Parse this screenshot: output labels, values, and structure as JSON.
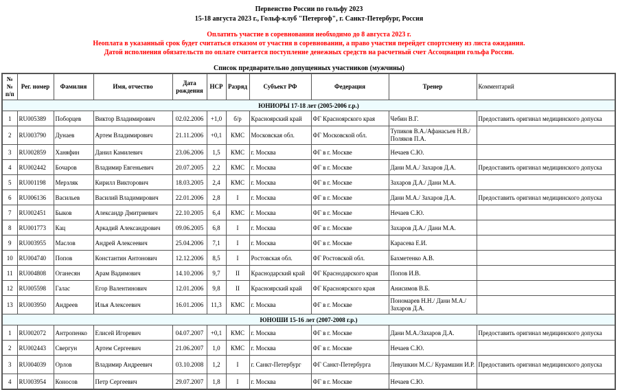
{
  "header": {
    "title": "Первенство России по гольфу 2023",
    "subtitle": "15-18 августа 2023 г., Гольф-клуб \"Петергоф\", г. Санкт-Петербург, Россия"
  },
  "notice": {
    "line1": "Оплатить участие в соревновании необходимо до 8 августа 2023 г.",
    "line2": "Неоплата в указанный срок будет считаться отказом от участия в соревновании, а право участия перейдет спортсмену из листа ожидания.",
    "line3": "Датой исполнения обязательств по оплате считается поступление денежных средств на расчетный счет Ассоциации гольфа России.",
    "color": "#ff0000"
  },
  "list_title": "Список предварительно допущенных участников (мужчины)",
  "columns": [
    "№ № п/п",
    "Рег. номер",
    "Фамилия",
    "Имя, отчество",
    "Дата рождения",
    "НСР",
    "Разряд",
    "Субъект РФ",
    "Федерация",
    "Тренер",
    "Комментарий"
  ],
  "sections": [
    {
      "title": "ЮНИОРЫ 17-18 лет (2005-2006 г.р.)",
      "rows": [
        [
          "1",
          "RU005389",
          "Поборцев",
          "Виктор Владимирович",
          "02.02.2006",
          "+1,0",
          "б/р",
          "Красноярский край",
          "ФГ Красноярского края",
          "Чебин В.Г.",
          "Предоставить оригинал медицинского допуска"
        ],
        [
          "2",
          "RU003790",
          "Дунаев",
          "Артем Владимирович",
          "21.11.2006",
          "+0,1",
          "КМС",
          "Московская обл.",
          "ФГ Московской обл.",
          "Тупиков В.А./Афанасьев Н.В./ Поляков П.А.",
          ""
        ],
        [
          "3",
          "RU002859",
          "Ханяфин",
          "Данил Камилевич",
          "23.06.2006",
          "1,5",
          "КМС",
          "г. Москва",
          "ФГ в г. Москве",
          "Нечаев С.Ю.",
          ""
        ],
        [
          "4",
          "RU002442",
          "Бочаров",
          "Владимир Евгеньевич",
          "20.07.2005",
          "2,2",
          "КМС",
          "г. Москва",
          "ФГ в г. Москве",
          "Дани М.А./ Захаров Д.А.",
          "Предоставить оригинал медицинского допуска"
        ],
        [
          "5",
          "RU001198",
          "Мерзляк",
          "Кирилл Викторович",
          "18.03.2005",
          "2,4",
          "КМС",
          "г. Москва",
          "ФГ в г. Москве",
          "Захаров Д.А./ Дани М.А.",
          ""
        ],
        [
          "6",
          "RU006136",
          "Васильев",
          "Василий Владимирович",
          "22.01.2006",
          "2,8",
          "I",
          "г. Москва",
          "ФГ в г. Москве",
          "Дани М.А./ Захаров Д.А.",
          "Предоставить оригинал медицинского допуска"
        ],
        [
          "7",
          "RU002451",
          "Быков",
          "Александр Дмитриевич",
          "22.10.2005",
          "6,4",
          "КМС",
          "г. Москва",
          "ФГ в г. Москве",
          "Нечаев С.Ю.",
          ""
        ],
        [
          "8",
          "RU001773",
          "Кац",
          "Аркадий Александрович",
          "09.06.2005",
          "6,8",
          "I",
          "г. Москва",
          "ФГ в г. Москве",
          "Захаров Д.А./ Дани М.А.",
          ""
        ],
        [
          "9",
          "RU003955",
          "Маслов",
          "Андрей Алексеевич",
          "25.04.2006",
          "7,1",
          "I",
          "г. Москва",
          "ФГ в г. Москве",
          "Карасева Е.И.",
          ""
        ],
        [
          "10",
          "RU004740",
          "Попов",
          "Константин Антонович",
          "12.12.2006",
          "8,5",
          "I",
          "Ростовская обл.",
          "ФГ Ростовской обл.",
          "Бахметенко А.В.",
          ""
        ],
        [
          "11",
          "RU004808",
          "Оганесян",
          "Арам Вадимович",
          "14.10.2006",
          "9,7",
          "II",
          "Краснодарский край",
          "ФГ Краснодарского края",
          "Попов И.В.",
          ""
        ],
        [
          "12",
          "RU005598",
          "Галас",
          "Егор Валентинович",
          "12.01.2006",
          "9,8",
          "II",
          "Красноярский край",
          "ФГ Красноярского края",
          "Анисимов В.Б.",
          ""
        ],
        [
          "13",
          "RU003950",
          "Андреев",
          "Илья Алексеевич",
          "16.01.2006",
          "11,3",
          "КМС",
          "г. Москва",
          "ФГ в г. Москве",
          "Пономарев Н.Н./ Дани М.А./ Захаров Д.А.",
          ""
        ]
      ]
    },
    {
      "title": "ЮНОШИ 15-16 лет (2007-2008 г.р.)",
      "rows": [
        [
          "1",
          "RU002072",
          "Антропенко",
          "Елисей Игоревич",
          "04.07.2007",
          "+0,1",
          "КМС",
          "г. Москва",
          "ФГ в г. Москве",
          "Дани М.А./Захаров Д.А.",
          "Предоставить оригинал медицинского допуска"
        ],
        [
          "2",
          "RU002443",
          "Свергун",
          "Артем Сергеевич",
          "21.06.2007",
          "1,0",
          "КМС",
          "г. Москва",
          "ФГ в г. Москве",
          "Нечаев С.Ю.",
          ""
        ],
        [
          "3",
          "RU004039",
          "Орлов",
          "Владимир Андреевич",
          "03.10.2008",
          "1,2",
          "I",
          "г. Санкт-Петербург",
          "ФГ Санкт-Петербурга",
          "Левушкин М.С./ Курамшин И.Р.",
          "Предоставить оригинал медицинского допуска"
        ],
        [
          "4",
          "RU003954",
          "Коносов",
          "Петр Сергеевич",
          "29.07.2007",
          "1,8",
          "I",
          "г. Москва",
          "ФГ в г. Москве",
          "Нечаев С.Ю.",
          ""
        ]
      ]
    }
  ],
  "section_bg": "#eefcfe"
}
